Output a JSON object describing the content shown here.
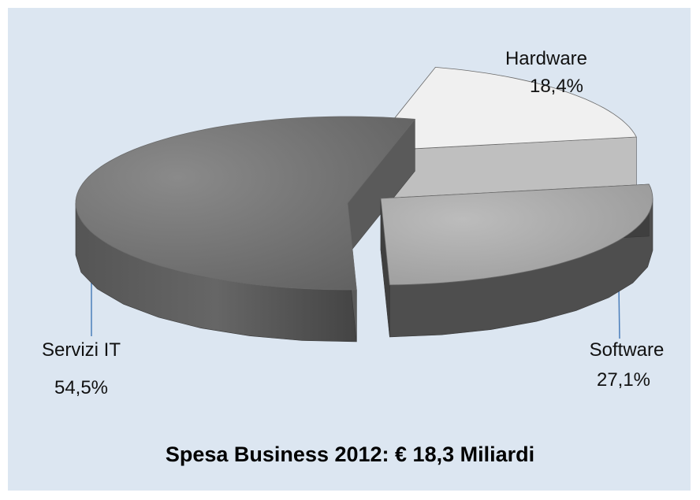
{
  "chart_data": {
    "type": "pie",
    "title": "Spesa Business 2012: € 18,3 Miliardi",
    "slices": [
      {
        "name": "Hardware",
        "value": 18.4,
        "value_label": "18,4%",
        "color": "#f0f0f0"
      },
      {
        "name": "Software",
        "value": 27.1,
        "value_label": "27,1%",
        "color": "#a6a6a6"
      },
      {
        "name": "Servizi IT",
        "value": 54.5,
        "value_label": "54,5%",
        "color": "#747474"
      }
    ],
    "legend": "none",
    "style": "3d-exploded"
  },
  "colors": {
    "background": "#dce6f1",
    "leader_line": "#4a7ebb"
  }
}
